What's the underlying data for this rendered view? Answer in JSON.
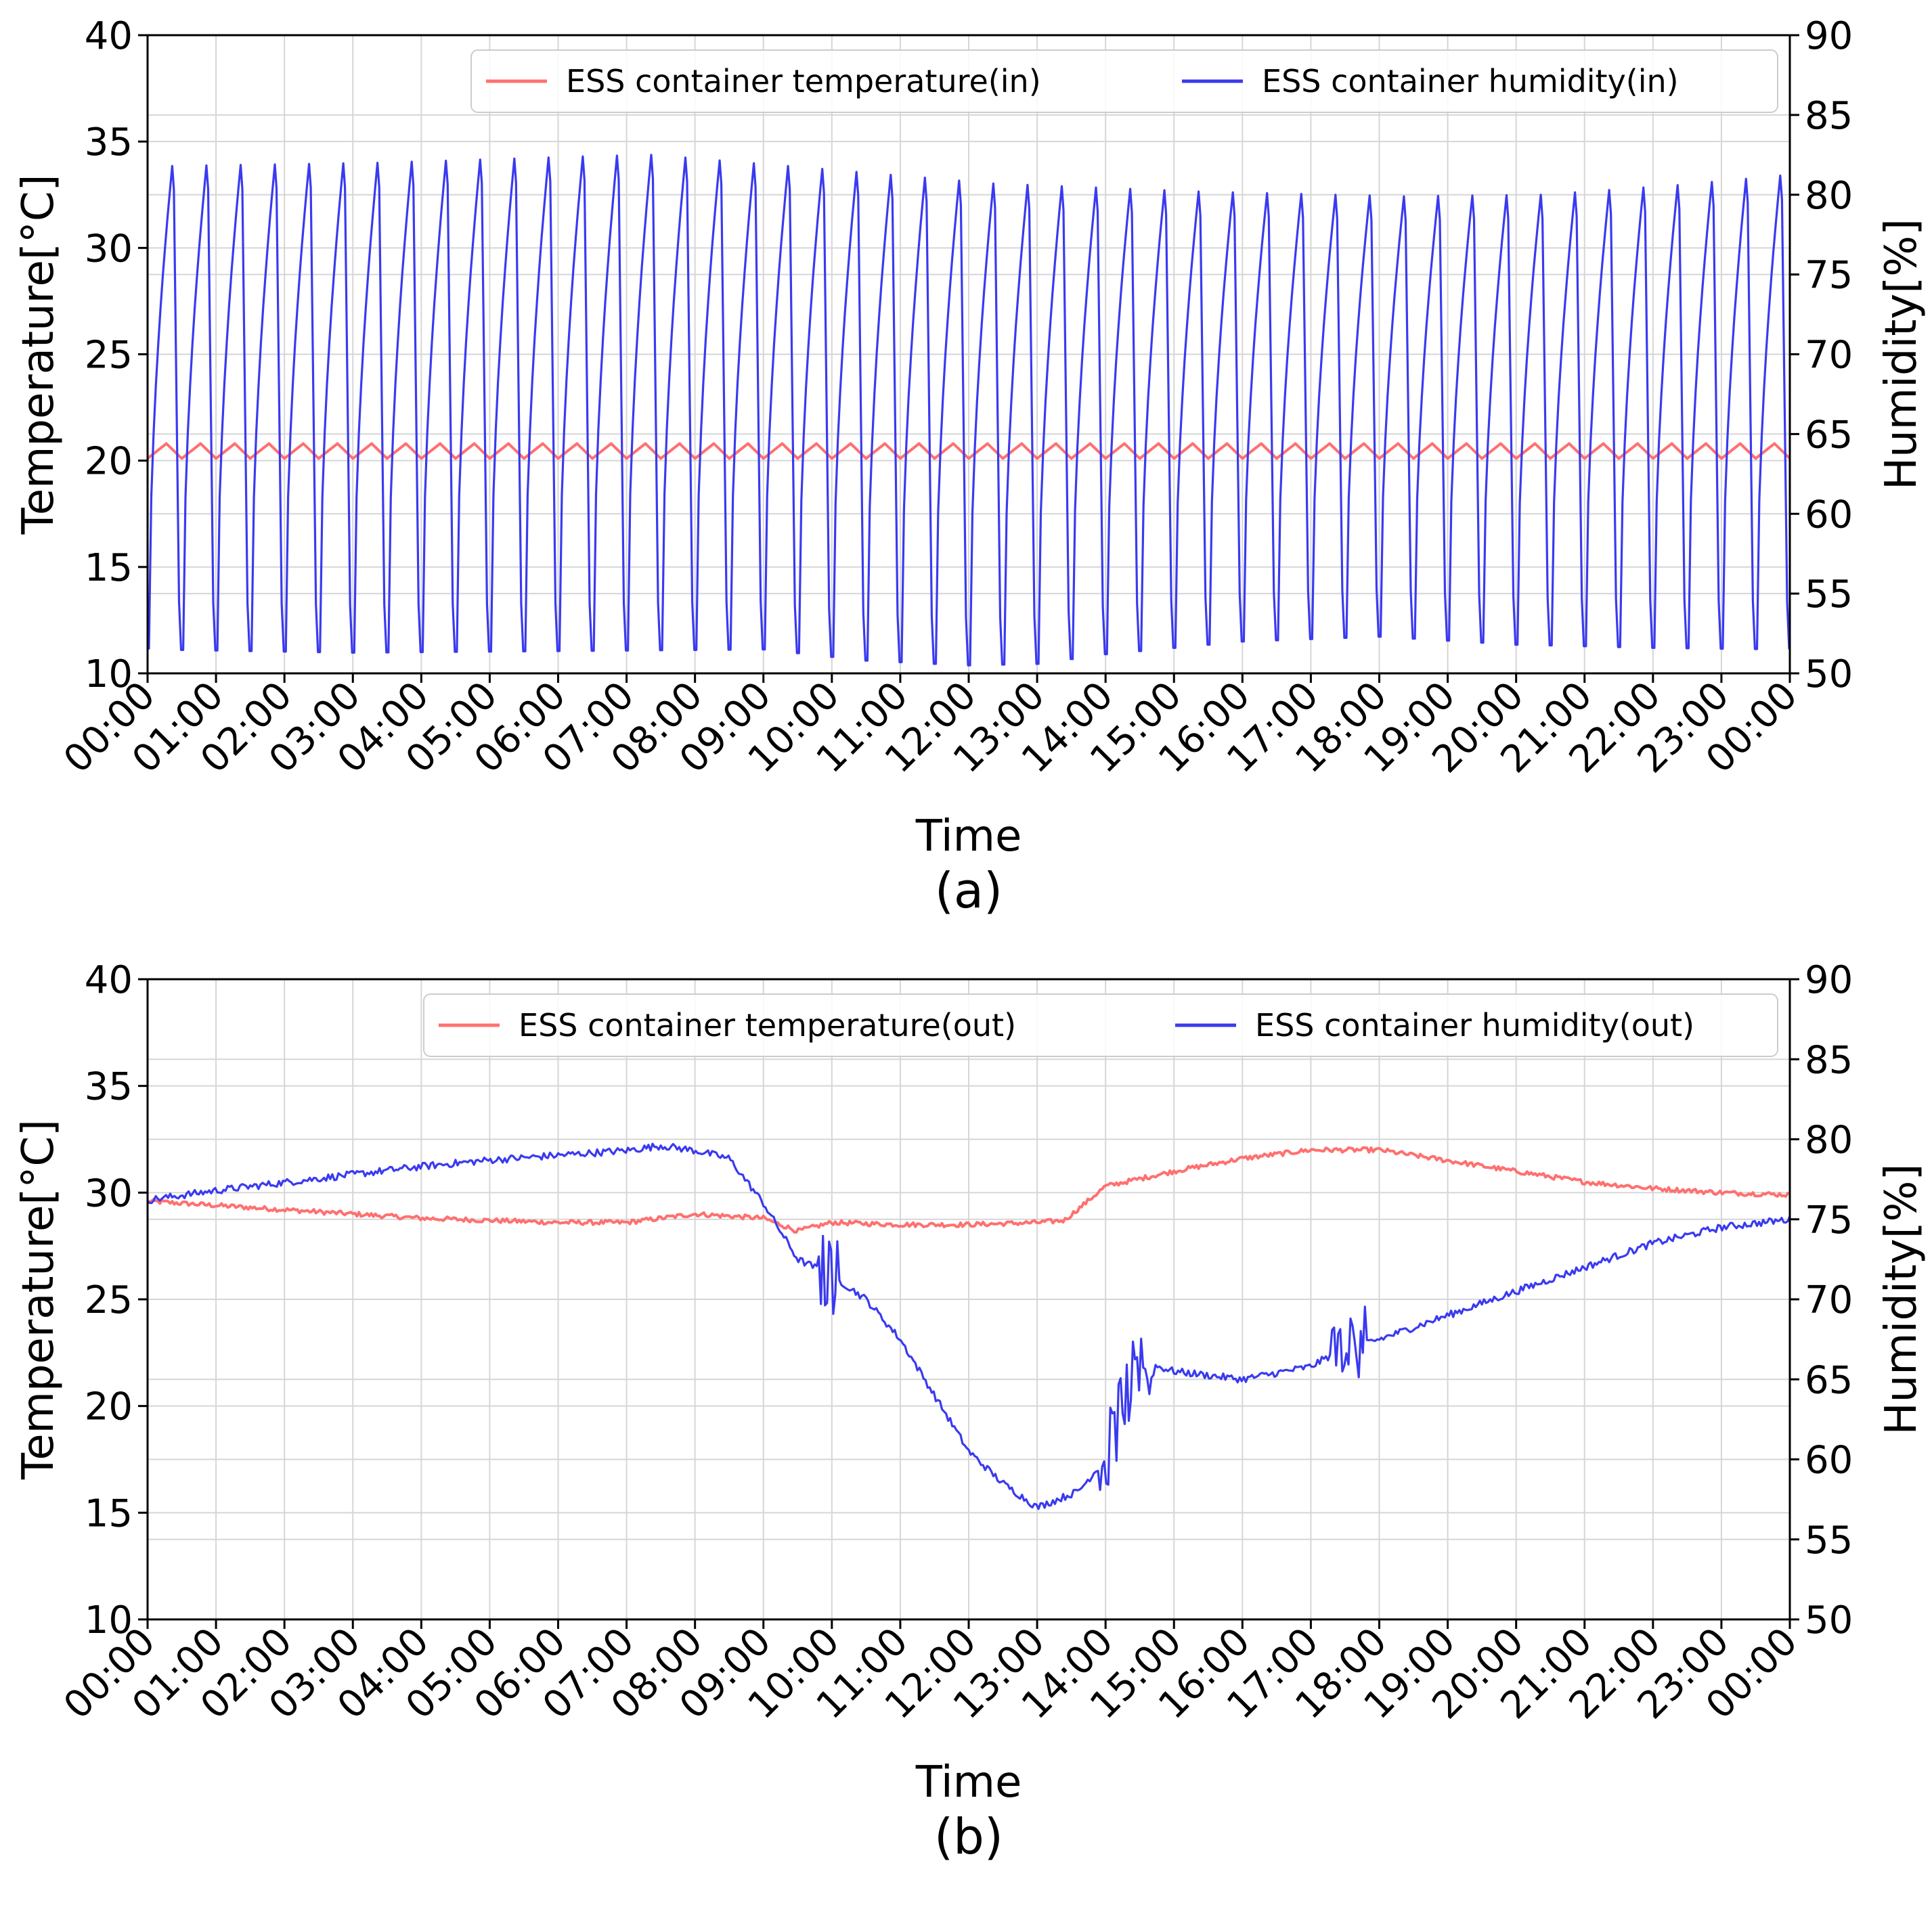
{
  "chart_data": [
    {
      "type": "line",
      "panel_label": "(a)",
      "xlabel": "Time",
      "ylabel_left": "Temperature[°C]",
      "ylabel_right": "Humidity[%]",
      "ylim_left": [
        10,
        40
      ],
      "ylim_right": [
        50,
        90
      ],
      "xlim_hours": [
        0,
        24
      ],
      "left_ticks": [
        "10",
        "15",
        "20",
        "25",
        "30",
        "35",
        "40"
      ],
      "right_ticks": [
        "50",
        "55",
        "60",
        "65",
        "70",
        "75",
        "80",
        "85",
        "90"
      ],
      "x_ticks": [
        "00:00",
        "01:00",
        "02:00",
        "03:00",
        "04:00",
        "05:00",
        "06:00",
        "07:00",
        "08:00",
        "09:00",
        "10:00",
        "11:00",
        "12:00",
        "13:00",
        "14:00",
        "15:00",
        "16:00",
        "17:00",
        "18:00",
        "19:00",
        "20:00",
        "21:00",
        "22:00",
        "23:00",
        "00:00"
      ],
      "grid": true,
      "legend_position": "top-right",
      "colors": {
        "temperature": "#ff7070",
        "humidity": "#3a3af0"
      },
      "series": [
        {
          "name": "ESS container temperature(in)",
          "axis": "left",
          "description_type": "sawtooth",
          "period_hours": 0.5,
          "min": 20.1,
          "max": 20.8
        },
        {
          "name": "ESS container humidity(in)",
          "axis": "right",
          "description_type": "cycles",
          "period_hours": 0.5,
          "peaks": [
            [
              0,
              81.8
            ],
            [
              3,
              82.0
            ],
            [
              6,
              82.4
            ],
            [
              7,
              82.5
            ],
            [
              9,
              81.8
            ],
            [
              12,
              80.7
            ],
            [
              15,
              80.2
            ],
            [
              18,
              79.9
            ],
            [
              20,
              80.0
            ],
            [
              22,
              80.6
            ],
            [
              24,
              81.4
            ]
          ],
          "troughs": [
            [
              0,
              51.5
            ],
            [
              3,
              51.3
            ],
            [
              6,
              51.4
            ],
            [
              9,
              51.5
            ],
            [
              10.5,
              50.8
            ],
            [
              12,
              50.5
            ],
            [
              13,
              50.6
            ],
            [
              14,
              51.2
            ],
            [
              16,
              52.0
            ],
            [
              18,
              52.3
            ],
            [
              20,
              51.8
            ],
            [
              22,
              51.6
            ],
            [
              24,
              51.5
            ]
          ]
        }
      ]
    },
    {
      "type": "line",
      "panel_label": "(b)",
      "xlabel": "Time",
      "ylabel_left": "Temperature[°C]",
      "ylabel_right": "Humidity[%]",
      "ylim_left": [
        10,
        40
      ],
      "ylim_right": [
        50,
        90
      ],
      "xlim_hours": [
        0,
        24
      ],
      "left_ticks": [
        "10",
        "15",
        "20",
        "25",
        "30",
        "35",
        "40"
      ],
      "right_ticks": [
        "50",
        "55",
        "60",
        "65",
        "70",
        "75",
        "80",
        "85",
        "90"
      ],
      "x_ticks": [
        "00:00",
        "01:00",
        "02:00",
        "03:00",
        "04:00",
        "05:00",
        "06:00",
        "07:00",
        "08:00",
        "09:00",
        "10:00",
        "11:00",
        "12:00",
        "13:00",
        "14:00",
        "15:00",
        "16:00",
        "17:00",
        "18:00",
        "19:00",
        "20:00",
        "21:00",
        "22:00",
        "23:00",
        "00:00"
      ],
      "grid": true,
      "legend_position": "top-right",
      "colors": {
        "temperature": "#ff7070",
        "humidity": "#3a3af0"
      },
      "series": [
        {
          "name": "ESS container temperature(out)",
          "axis": "left",
          "x": [
            0,
            1,
            2,
            3,
            4,
            5,
            6,
            7,
            8,
            9,
            9.5,
            10,
            11,
            12,
            13,
            13.4,
            14,
            15,
            16,
            17,
            18,
            19,
            20,
            21,
            22,
            23,
            24
          ],
          "y": [
            29.6,
            29.4,
            29.2,
            29.0,
            28.8,
            28.7,
            28.6,
            28.6,
            29.0,
            28.8,
            28.2,
            28.6,
            28.5,
            28.5,
            28.6,
            28.7,
            30.3,
            31.0,
            31.6,
            32.0,
            32.0,
            31.5,
            31.0,
            30.5,
            30.2,
            30.0,
            29.9
          ]
        },
        {
          "name": "ESS container humidity(out)",
          "axis": "right",
          "x": [
            0,
            1,
            2,
            3,
            4,
            5,
            6,
            7,
            7.5,
            8,
            8.5,
            9,
            9.5,
            10,
            10.5,
            11,
            11.5,
            12,
            12.5,
            13,
            13.3,
            13.6,
            14,
            14.3,
            14.6,
            15,
            16,
            17,
            17.5,
            18,
            19,
            20,
            21,
            22,
            23,
            24
          ],
          "y": [
            76.2,
            76.8,
            77.3,
            77.8,
            78.3,
            78.7,
            79.0,
            79.3,
            79.6,
            79.3,
            78.8,
            76.0,
            72.5,
            71.5,
            70.0,
            67.5,
            64.0,
            60.5,
            58.5,
            57.0,
            57.5,
            58.0,
            60.0,
            64.0,
            66.0,
            65.5,
            65.0,
            65.8,
            67.0,
            67.5,
            69.0,
            70.5,
            72.0,
            73.5,
            74.5,
            75.0
          ]
        }
      ]
    }
  ]
}
